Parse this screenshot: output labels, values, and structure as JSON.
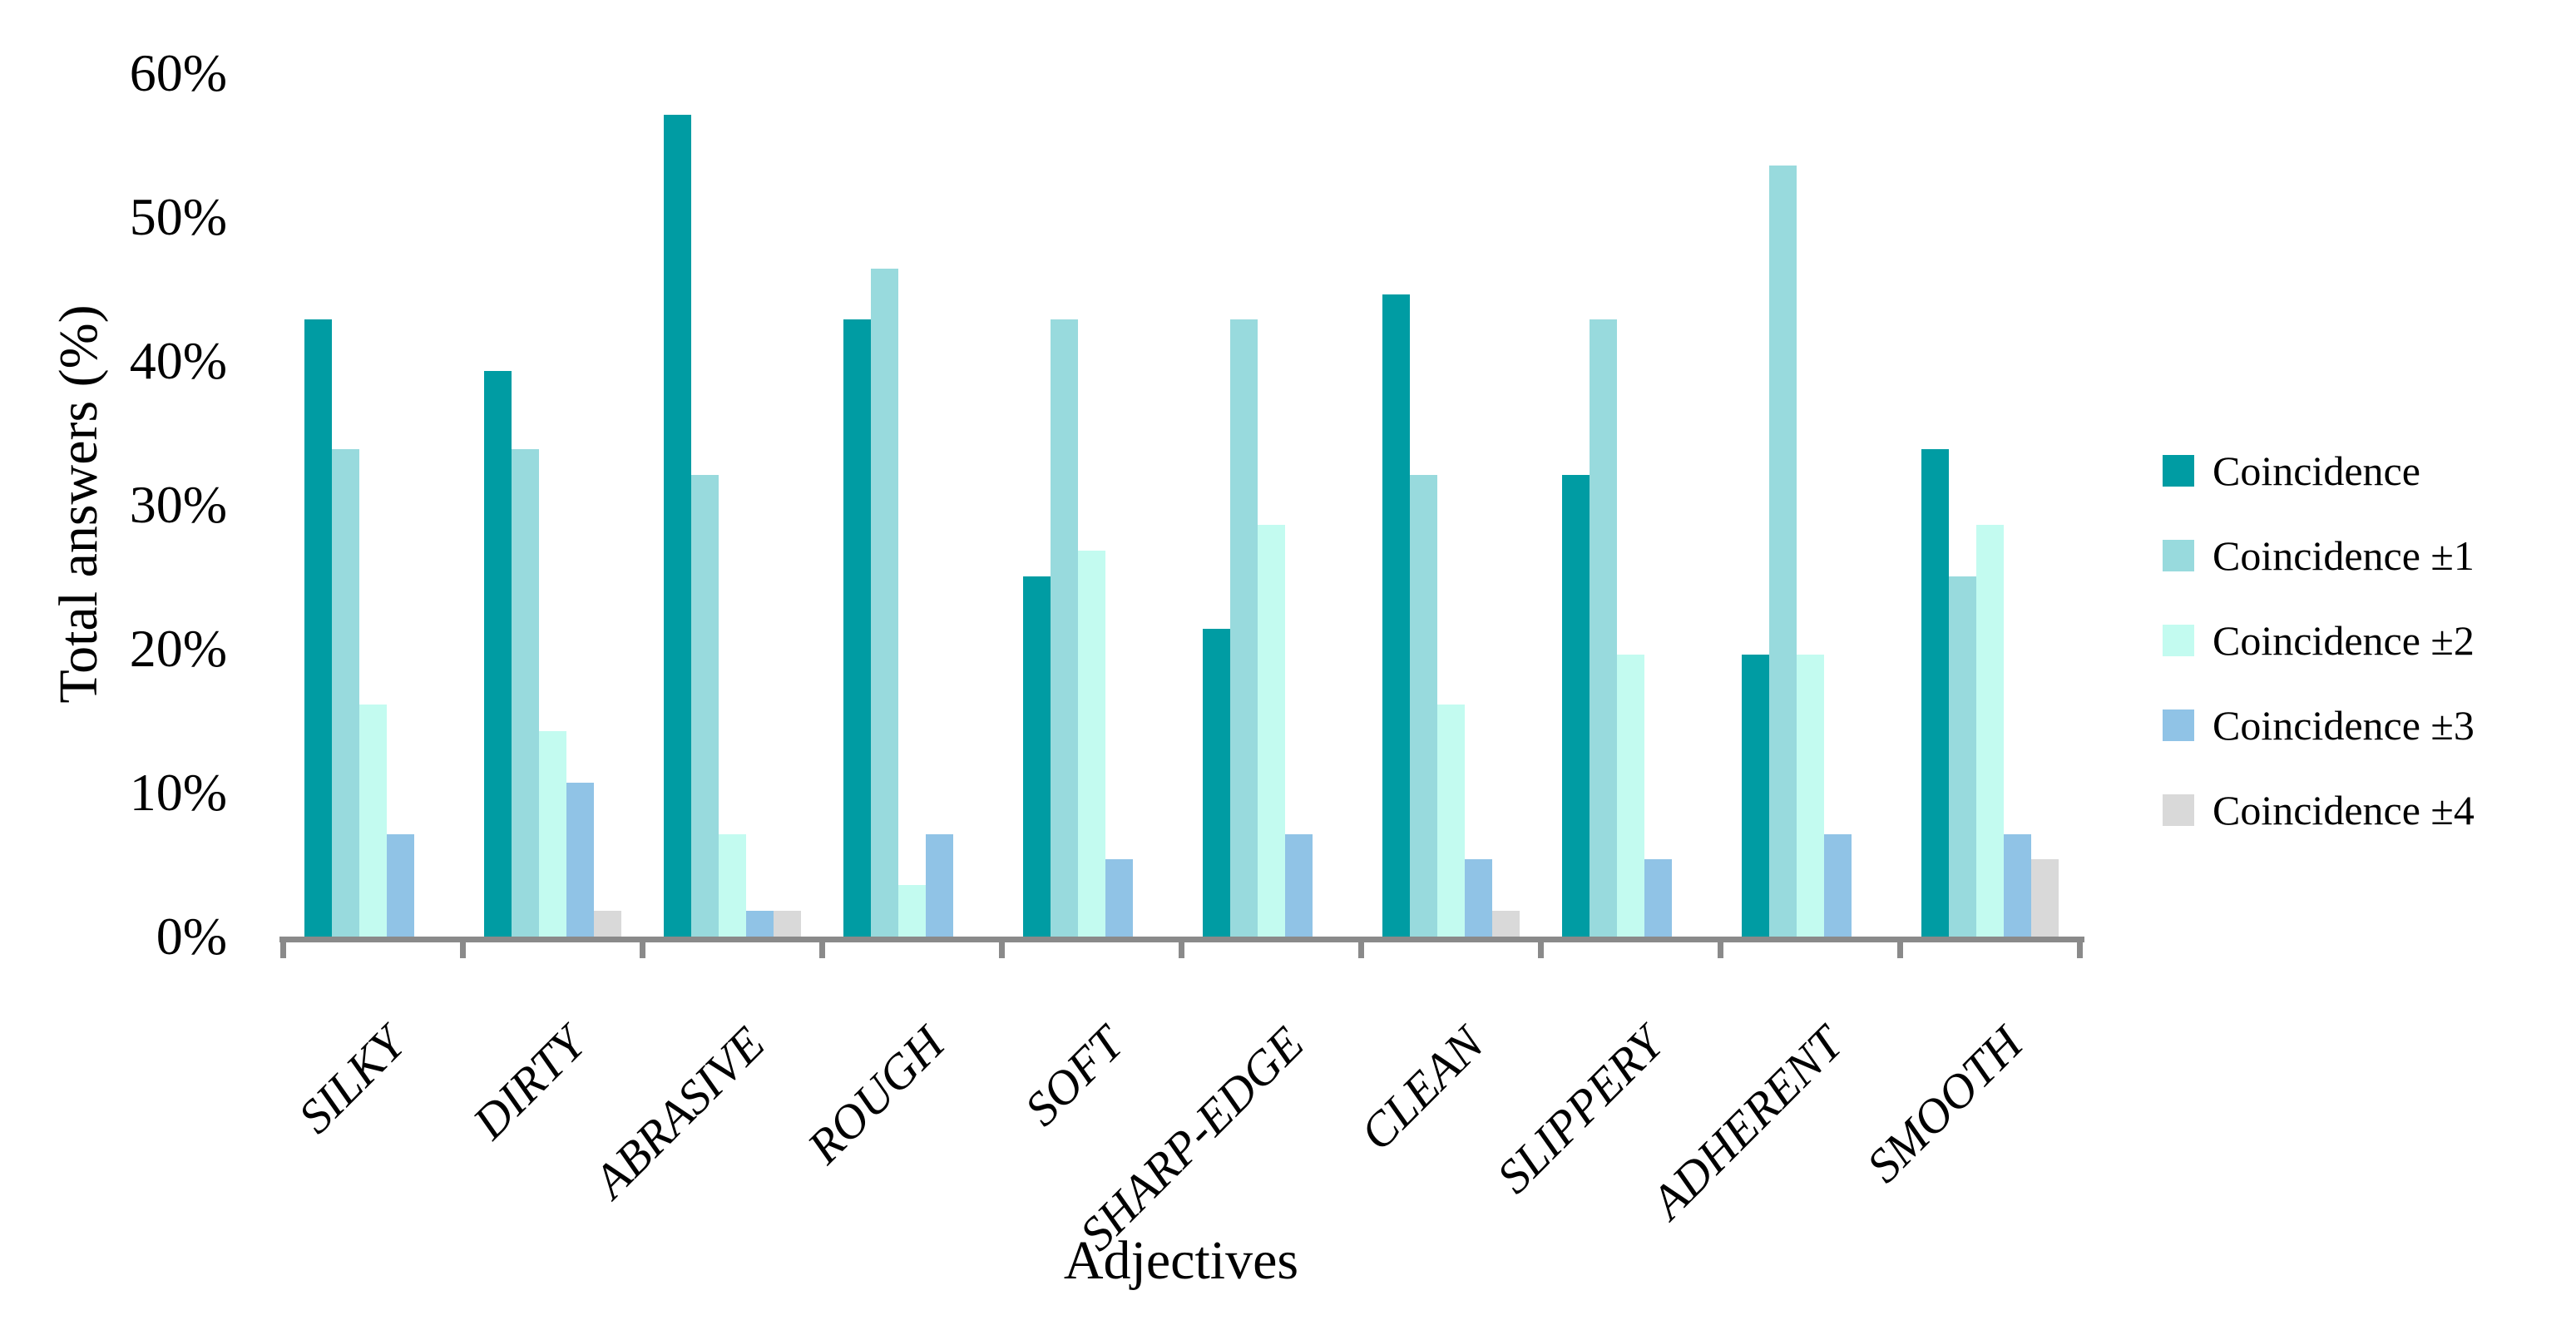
{
  "chart_data": {
    "type": "bar",
    "title": "",
    "xlabel": "Adjectives",
    "ylabel": "Total answers (%)",
    "ylim": [
      0,
      60
    ],
    "ytick_step": 10,
    "ytick_labels": [
      "0%",
      "10%",
      "20%",
      "30%",
      "40%",
      "50%",
      "60%"
    ],
    "grid": false,
    "legend_position": "right",
    "axis_color": "#8a8a8a",
    "categories": [
      "SILKY",
      "DIRTY",
      "ABRASIVE",
      "ROUGH",
      "SOFT",
      "SHARP-EDGE",
      "CLEAN",
      "SLIPPERY",
      "ADHERENT",
      "SMOOTH"
    ],
    "series": [
      {
        "name": "Coincidence",
        "color": "#009CA3",
        "values": [
          42.9,
          39.3,
          57.1,
          42.9,
          25.0,
          21.4,
          44.6,
          32.1,
          19.6,
          33.9
        ]
      },
      {
        "name": "Coincidence ±1",
        "color": "#98DADD",
        "values": [
          33.9,
          33.9,
          32.1,
          46.4,
          42.9,
          42.9,
          32.1,
          42.9,
          53.6,
          25.0
        ]
      },
      {
        "name": "Coincidence ±2",
        "color": "#C3FBF0",
        "values": [
          16.1,
          14.3,
          7.1,
          3.6,
          26.8,
          28.6,
          16.1,
          19.6,
          19.6,
          28.6
        ]
      },
      {
        "name": "Coincidence ±3",
        "color": "#90C3E6",
        "values": [
          7.1,
          10.7,
          1.8,
          7.1,
          5.4,
          7.1,
          5.4,
          5.4,
          7.1,
          7.1
        ]
      },
      {
        "name": "Coincidence ±4",
        "color": "#D9D9D9",
        "values": [
          0,
          1.8,
          1.8,
          0,
          0,
          0,
          1.8,
          0,
          0,
          5.4
        ]
      }
    ]
  }
}
